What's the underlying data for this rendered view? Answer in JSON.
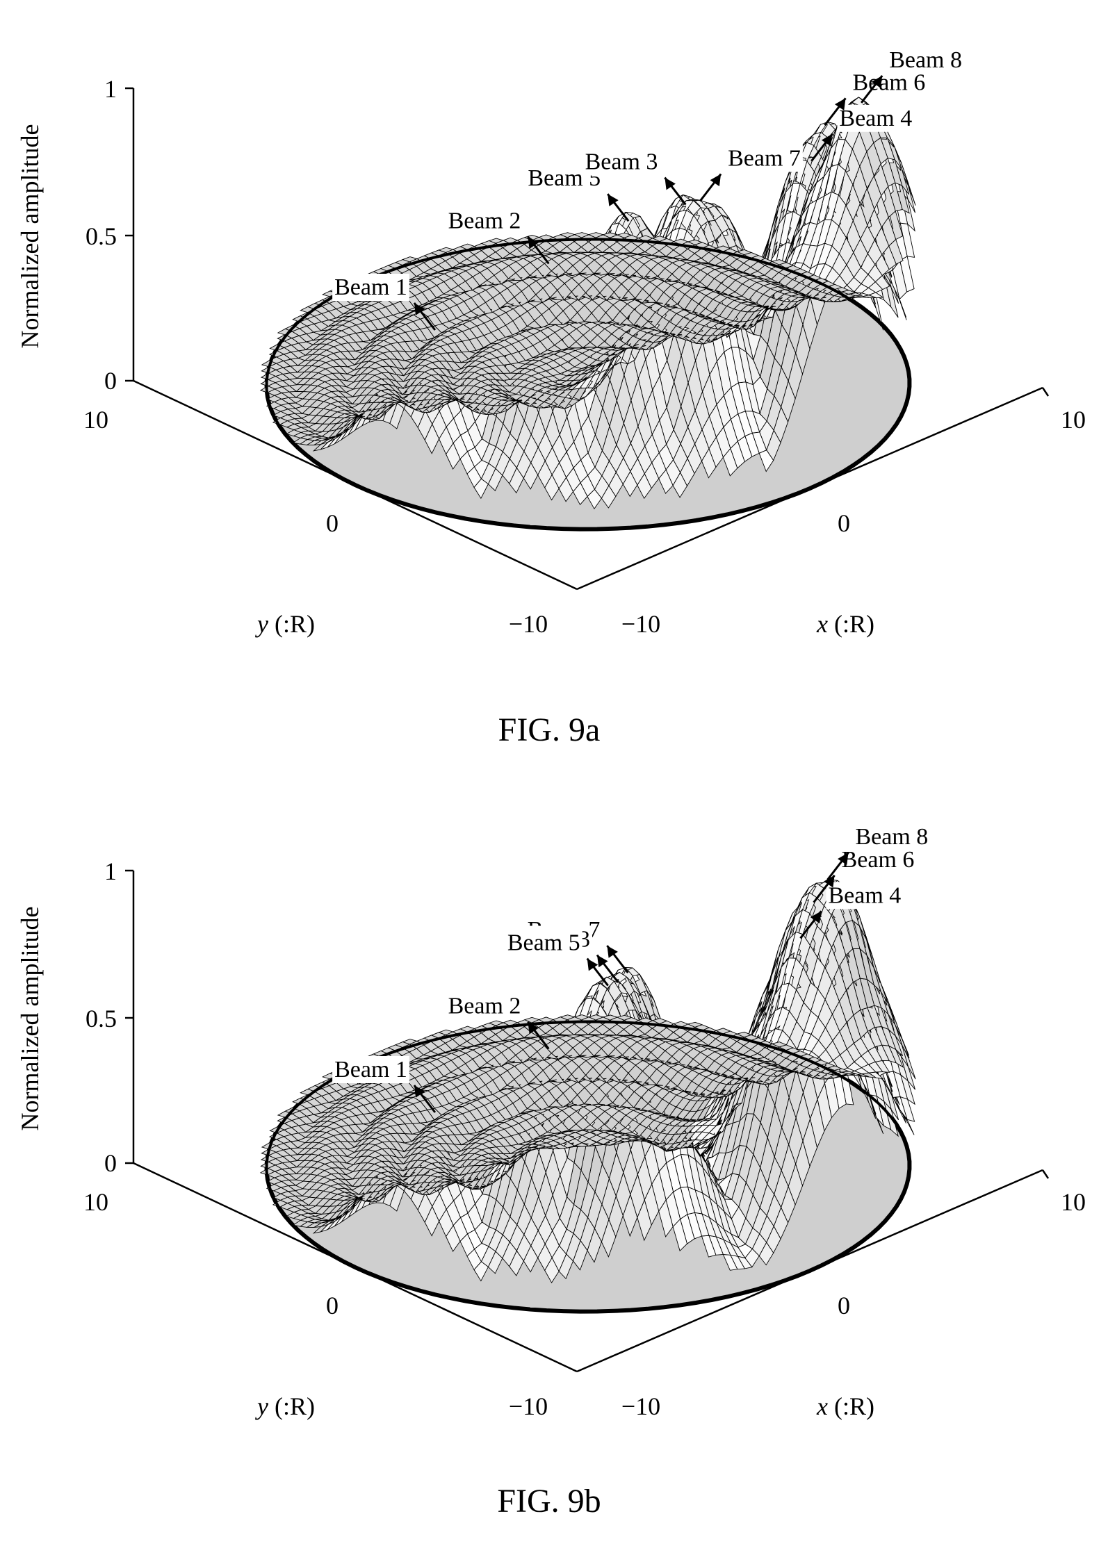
{
  "chart_data": [
    {
      "type": "surface",
      "caption": "FIG. 9a",
      "zlabel": "Normalized amplitude",
      "xlabel_var": "x",
      "xlabel_unit": " (:R)",
      "ylabel_var": "y",
      "ylabel_unit": " (:R)",
      "x_ticks": [
        "−10",
        "0",
        "10"
      ],
      "y_ticks": [
        "10",
        "0",
        "−10"
      ],
      "z_ticks": [
        "0",
        "0.5",
        "1"
      ],
      "xlim": [
        -10,
        10
      ],
      "ylim": [
        -10,
        10
      ],
      "zlim": [
        0,
        1
      ],
      "beams": [
        {
          "label": "Beam 1",
          "x": -8.0,
          "y": 1.5,
          "z": 0.5
        },
        {
          "label": "Beam 2",
          "x": -5.5,
          "y": 4.0,
          "z": 0.73
        },
        {
          "label": "Beam 5",
          "x": -3.5,
          "y": 5.5,
          "z": 0.86
        },
        {
          "label": "Beam 3",
          "x": -2.0,
          "y": 6.5,
          "z": 0.9
        },
        {
          "label": "Beam 7",
          "x": 1.0,
          "y": 4.0,
          "z": 0.72
        },
        {
          "label": "Beam 4",
          "x": 1.5,
          "y": 8.5,
          "z": 1.0
        },
        {
          "label": "Beam 6",
          "x": 3.5,
          "y": 7.0,
          "z": 1.0
        },
        {
          "label": "Beam 8",
          "x": 6.5,
          "y": 5.5,
          "z": 0.92
        }
      ]
    },
    {
      "type": "surface",
      "caption": "FIG. 9b",
      "zlabel": "Normalized amplitude",
      "xlabel_var": "x",
      "xlabel_unit": " (:R)",
      "ylabel_var": "y",
      "ylabel_unit": " (:R)",
      "x_ticks": [
        "−10",
        "0",
        "10"
      ],
      "y_ticks": [
        "10",
        "0",
        "−10"
      ],
      "z_ticks": [
        "0",
        "0.5",
        "1"
      ],
      "xlim": [
        -10,
        10
      ],
      "ylim": [
        -10,
        10
      ],
      "zlim": [
        0,
        1
      ],
      "beams": [
        {
          "label": "Beam 1",
          "x": -8.0,
          "y": 1.5,
          "z": 0.5
        },
        {
          "label": "Beam 2",
          "x": -5.5,
          "y": 4.0,
          "z": 0.72
        },
        {
          "label": "Beam 7",
          "x": -4.0,
          "y": 6.0,
          "z": 1.0
        },
        {
          "label": "Beam 3",
          "x": -3.0,
          "y": 4.5,
          "z": 0.88
        },
        {
          "label": "Beam 5",
          "x": -2.0,
          "y": 3.0,
          "z": 0.78
        },
        {
          "label": "Beam 4",
          "x": 1.5,
          "y": 8.0,
          "z": 1.0
        },
        {
          "label": "Beam 6",
          "x": 3.5,
          "y": 6.5,
          "z": 1.0
        },
        {
          "label": "Beam 8",
          "x": 6.0,
          "y": 4.5,
          "z": 0.92
        }
      ]
    }
  ]
}
